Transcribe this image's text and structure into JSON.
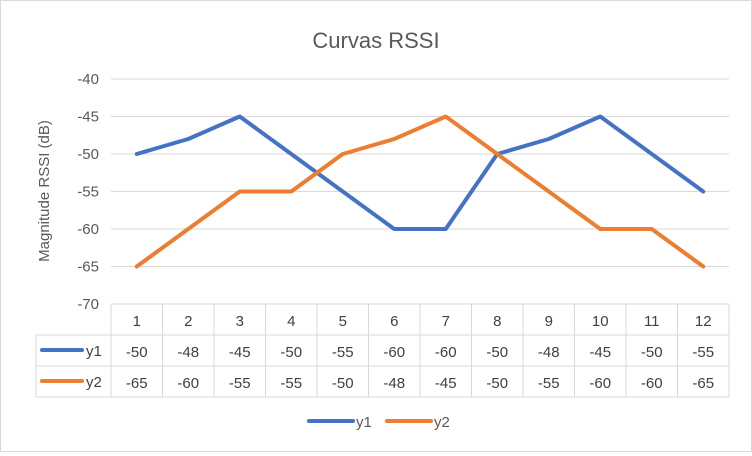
{
  "chart_data": {
    "type": "line",
    "title": "Curvas RSSI",
    "xlabel": "",
    "ylabel": "Magnitude RSSI (dB)",
    "categories": [
      "1",
      "2",
      "3",
      "4",
      "5",
      "6",
      "7",
      "8",
      "9",
      "10",
      "11",
      "12"
    ],
    "ylim": [
      -70,
      -40
    ],
    "yticks": [
      "-40",
      "-45",
      "-50",
      "-55",
      "-60",
      "-65",
      "-70"
    ],
    "grid": true,
    "legend_position": "bottom",
    "data_table": true,
    "series": [
      {
        "name": "y1",
        "color": "#4472c4",
        "values": [
          -50,
          -48,
          -45,
          -50,
          -55,
          -60,
          -60,
          -50,
          -48,
          -45,
          -50,
          -55
        ]
      },
      {
        "name": "y2",
        "color": "#ed7d31",
        "values": [
          -65,
          -60,
          -55,
          -55,
          -50,
          -48,
          -45,
          -50,
          -55,
          -60,
          -60,
          -65
        ]
      }
    ]
  }
}
